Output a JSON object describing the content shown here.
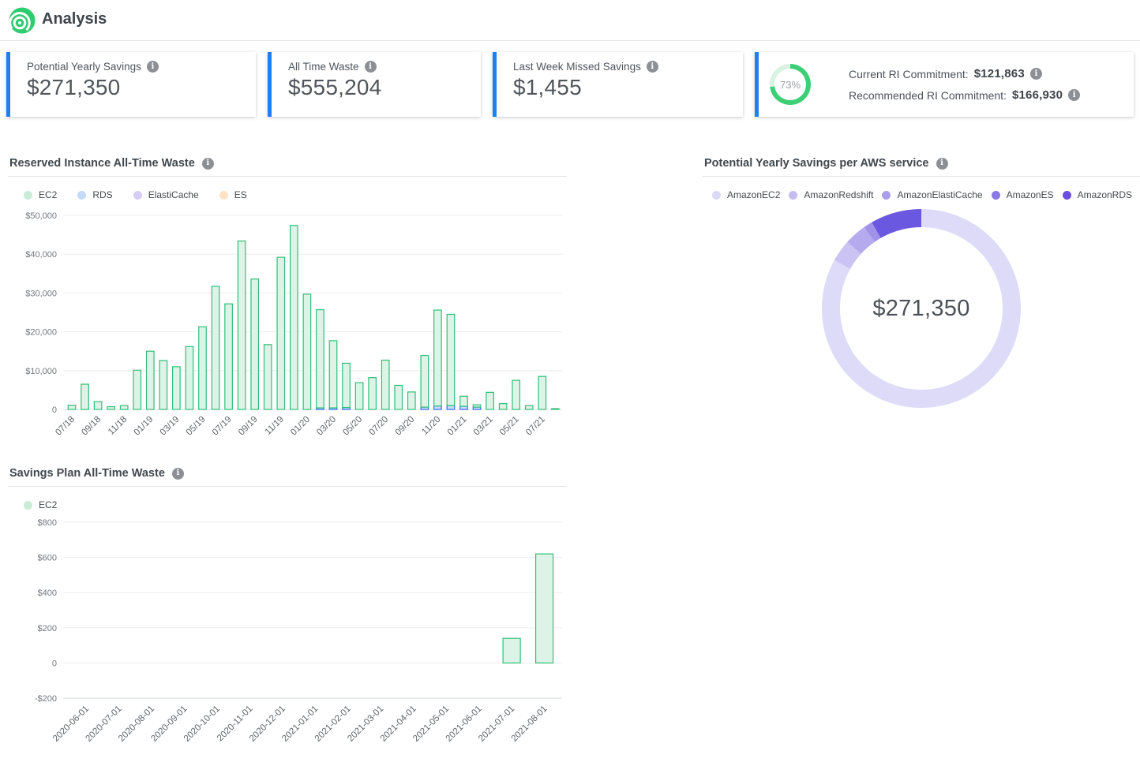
{
  "header": {
    "title": "Analysis"
  },
  "icons": {
    "info_glyph": "i"
  },
  "colors": {
    "accent_blue": "#1f7ff2",
    "logo_green": "#2ecc71",
    "mini_donut_green": "#3ccf76",
    "mini_donut_track": "#d8f3e2",
    "ec2_bar_fill": "#def3e7",
    "ec2_bar_stroke": "#2fbf79",
    "rds_bar_fill": "#ccdefb",
    "rds_bar_stroke": "#2d6cf1"
  },
  "kpi_cards": [
    {
      "label": "Potential Yearly Savings",
      "value": "$271,350"
    },
    {
      "label": "All Time Waste",
      "value": "$555,204"
    },
    {
      "label": "Last Week Missed Savings",
      "value": "$1,455"
    },
    {
      "percent": "73%",
      "percent_value": 73,
      "rows": [
        {
          "label": "Current RI Commitment:",
          "value": "$121,863"
        },
        {
          "label": "Recommended RI Commitment:",
          "value": "$166,930"
        }
      ]
    }
  ],
  "chart_data": [
    {
      "id": "ri_all_time_waste",
      "type": "bar",
      "stacked": true,
      "title": "Reserved Instance All-Time Waste",
      "legend": [
        {
          "label": "EC2",
          "color": "#c8ecd7"
        },
        {
          "label": "RDS",
          "color": "#c4daf9"
        },
        {
          "label": "ElastiCache",
          "color": "#d7cdf9"
        },
        {
          "label": "ES",
          "color": "#fce4c5"
        }
      ],
      "legend_position": "top",
      "grid": true,
      "ylim": [
        0,
        50000
      ],
      "y_tick_labels": [
        "$50,000",
        "$40,000",
        "$30,000",
        "$20,000",
        "$10,000",
        "0"
      ],
      "x_label_every": 2,
      "categories": [
        "07/18",
        "08/18",
        "09/18",
        "10/18",
        "11/18",
        "12/18",
        "01/19",
        "02/19",
        "03/19",
        "04/19",
        "05/19",
        "06/19",
        "07/19",
        "08/19",
        "09/19",
        "10/19",
        "11/19",
        "12/19",
        "01/20",
        "02/20",
        "03/20",
        "04/20",
        "05/20",
        "06/20",
        "07/20",
        "08/20",
        "09/20",
        "10/20",
        "11/20",
        "12/20",
        "01/21",
        "02/21",
        "03/21",
        "04/21",
        "05/21",
        "06/21",
        "07/21",
        "08/21"
      ],
      "series": [
        {
          "name": "EC2",
          "fill": "#def3e7",
          "stroke": "#2fbf79",
          "values": [
            1100,
            6500,
            2000,
            700,
            1000,
            10100,
            15000,
            12600,
            11000,
            16200,
            21300,
            31700,
            27200,
            43400,
            33600,
            16700,
            39200,
            47400,
            29700,
            25300,
            17300,
            11400,
            6900,
            8200,
            12700,
            6200,
            4500,
            13300,
            24700,
            23500,
            2600,
            600,
            4400,
            1500,
            7500,
            1000,
            8500,
            200
          ]
        },
        {
          "name": "RDS",
          "fill": "#ccdefb",
          "stroke": "#2d6cf1",
          "values": [
            0,
            0,
            0,
            0,
            0,
            0,
            0,
            0,
            0,
            0,
            0,
            0,
            0,
            0,
            0,
            0,
            0,
            0,
            0,
            400,
            400,
            500,
            0,
            0,
            0,
            0,
            0,
            600,
            900,
            1000,
            800,
            600,
            0,
            0,
            0,
            0,
            0,
            0
          ]
        }
      ]
    },
    {
      "id": "savings_per_aws_service",
      "type": "pie",
      "title": "Potential Yearly Savings per AWS service",
      "center_label": "$271,350",
      "legend_position": "top",
      "slices": [
        {
          "label": "AmazonEC2",
          "percent": 83.1,
          "color": "#dedbf8",
          "legend_color": "#dcd9f8"
        },
        {
          "label": "AmazonRedshift",
          "percent": 3.6,
          "color": "#cac3f3",
          "legend_color": "#c5bdf2"
        },
        {
          "label": "AmazonElastiCache",
          "percent": 3.6,
          "color": "#b4aaed",
          "legend_color": "#a99ee9"
        },
        {
          "label": "AmazonES",
          "percent": 1.4,
          "color": "#a192e9",
          "legend_color": "#8a79e4"
        },
        {
          "label": "AmazonRDS",
          "percent": 8.3,
          "color": "#6b58e1",
          "legend_color": "#6b50df"
        }
      ]
    },
    {
      "id": "savings_plan_all_time_waste",
      "type": "bar",
      "stacked": false,
      "title": "Savings Plan All-Time Waste",
      "legend": [
        {
          "label": "EC2",
          "color": "#c8ecd7"
        }
      ],
      "legend_position": "top",
      "grid": true,
      "ylim": [
        -200,
        800
      ],
      "y_tick_labels": [
        "$800",
        "$600",
        "$400",
        "$200",
        "0",
        "-$200"
      ],
      "x_label_every": 1,
      "categories": [
        "2020-06-01",
        "2020-07-01",
        "2020-08-01",
        "2020-09-01",
        "2020-10-01",
        "2020-11-01",
        "2020-12-01",
        "2021-01-01",
        "2021-02-01",
        "2021-03-01",
        "2021-04-01",
        "2021-05-01",
        "2021-06-01",
        "2021-07-01",
        "2021-08-01"
      ],
      "series": [
        {
          "name": "EC2",
          "fill": "#def3e7",
          "stroke": "#2fbf79",
          "values": [
            0,
            0,
            0,
            0,
            0,
            0,
            0,
            0,
            0,
            0,
            0,
            0,
            0,
            140,
            620
          ]
        }
      ]
    }
  ]
}
